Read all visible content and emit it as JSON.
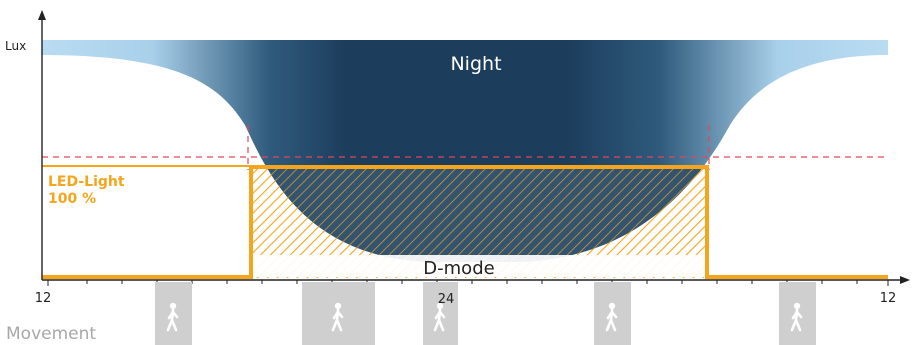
{
  "y_axis_label": "Lux",
  "night_label": "Night",
  "led_label_line1": "LED-Light",
  "led_label_line2": "100 %",
  "dmode_label": "D-mode",
  "x_tick_left": "12",
  "x_tick_mid": "24",
  "x_tick_right": "12",
  "movement_label": "Movement",
  "colors": {
    "night_dark": "#1c3d5c",
    "night_light": "#b9dcf2",
    "led_orange": "#f5a51c",
    "threshold_red": "#e0475a",
    "movement_gray": "#cfcfcf",
    "axis": "#222222"
  },
  "icons": [
    "walking-person-icon"
  ]
}
